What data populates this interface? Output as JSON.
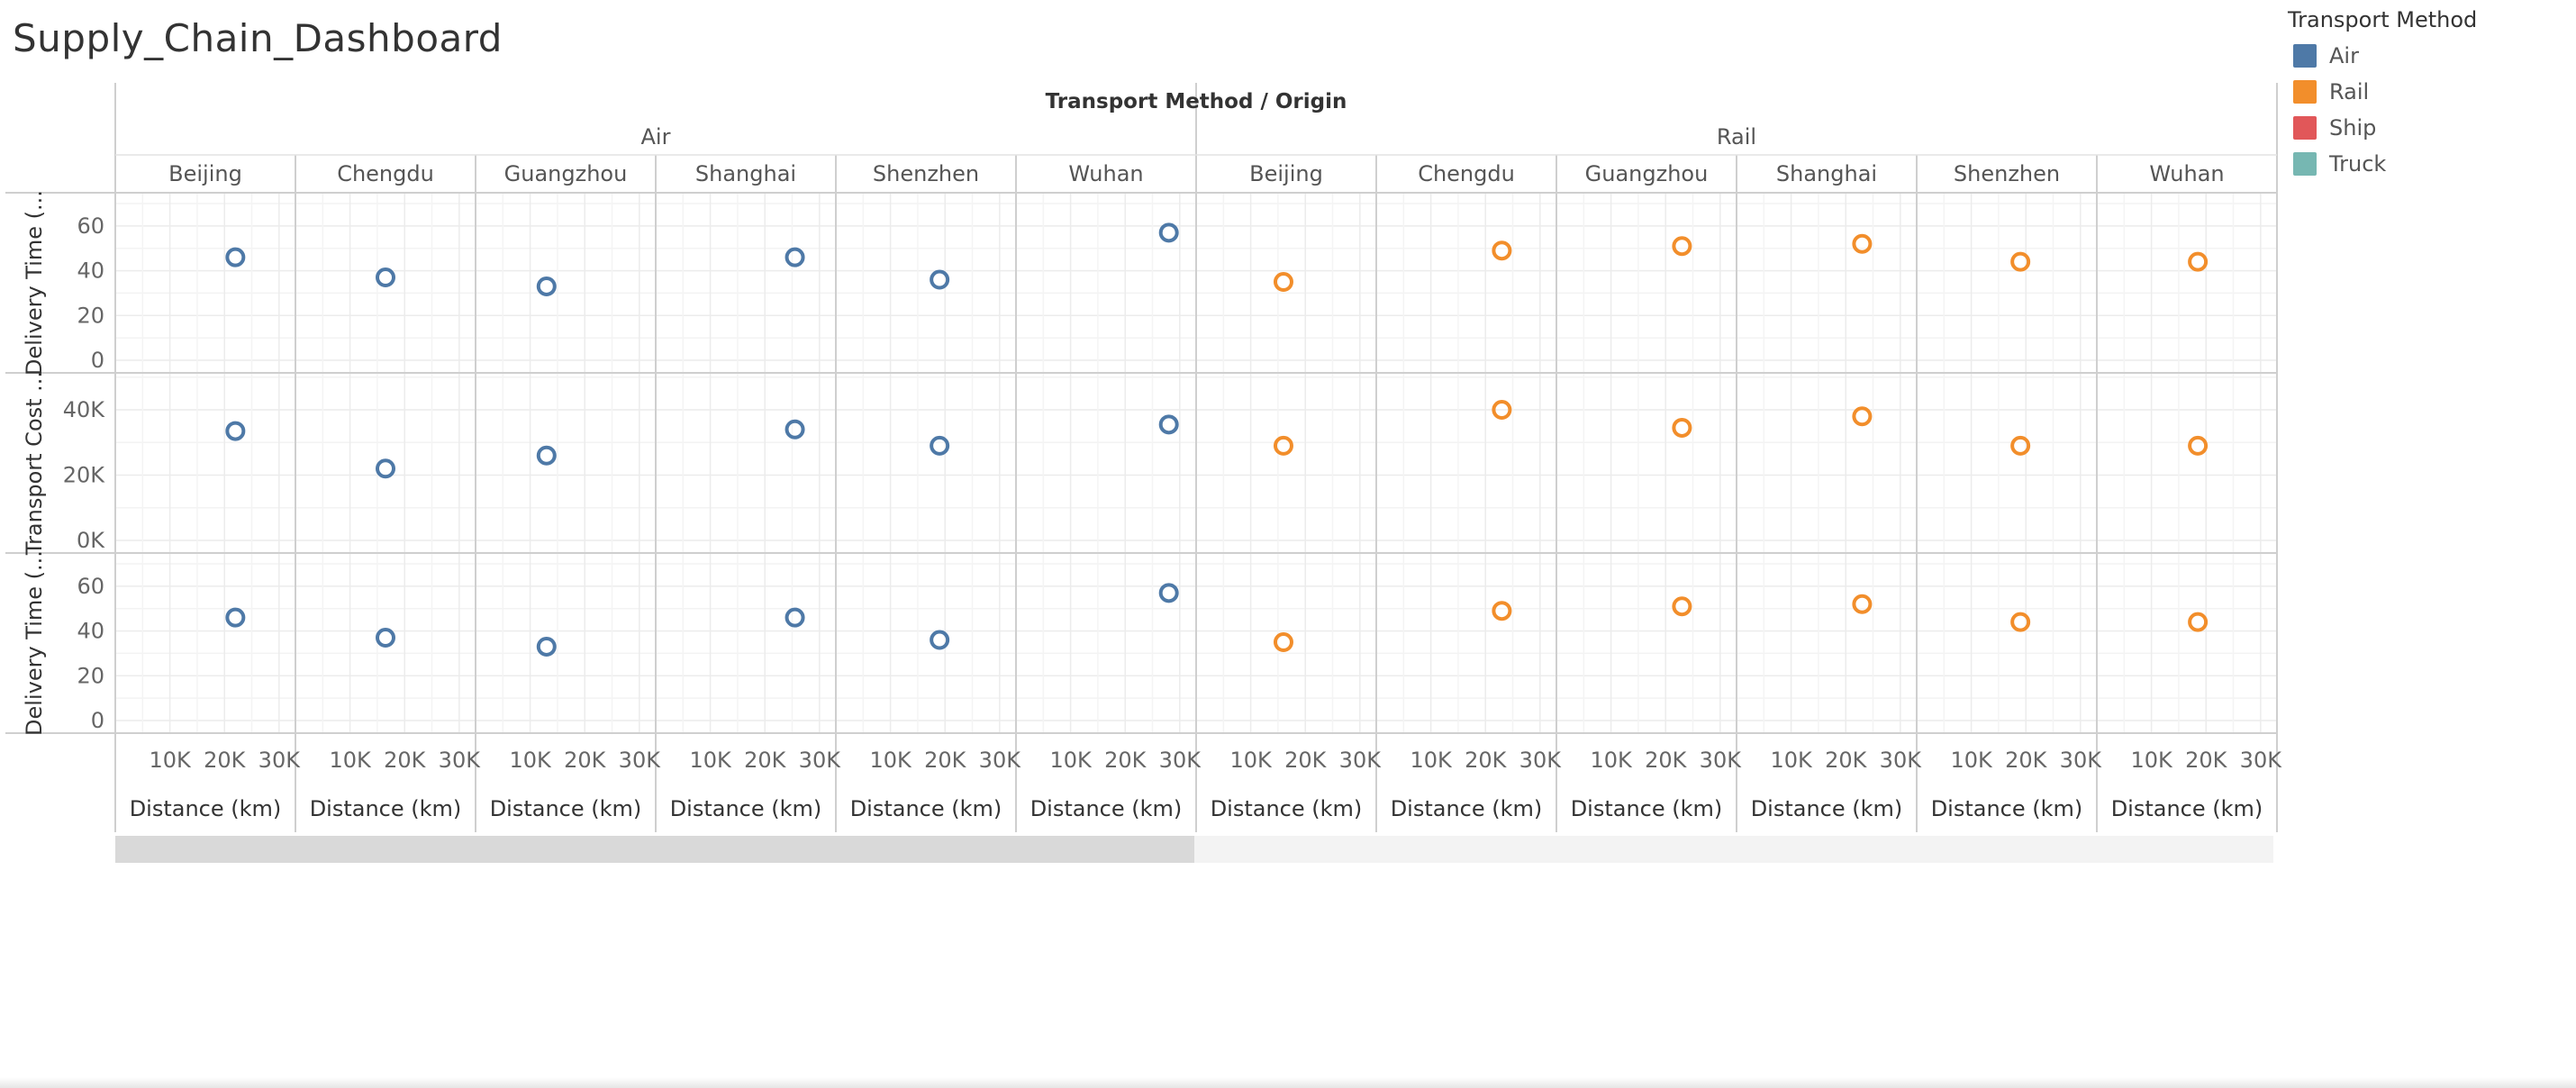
{
  "dashboard": {
    "title": "Supply_Chain_Dashboard"
  },
  "legend": {
    "title": "Transport Method",
    "items": [
      {
        "label": "Air",
        "color": "#4e79a7"
      },
      {
        "label": "Rail",
        "color": "#f28e2b"
      },
      {
        "label": "Ship",
        "color": "#e15759"
      },
      {
        "label": "Truck",
        "color": "#76b7b2"
      }
    ]
  },
  "chart_data": {
    "type": "scatter",
    "column_header": "Transport Method / Origin",
    "groups": [
      {
        "name": "Air",
        "color": "#4e79a7",
        "origins": [
          "Beijing",
          "Chengdu",
          "Guangzhou",
          "Shanghai",
          "Shenzhen",
          "Wuhan"
        ]
      },
      {
        "name": "Rail",
        "color": "#f28e2b",
        "origins": [
          "Beijing",
          "Chengdu",
          "Guangzhou",
          "Shanghai",
          "Shenzhen",
          "Wuhan"
        ]
      }
    ],
    "rows": [
      {
        "label": "Delivery Time (...",
        "ylim": [
          0,
          70
        ],
        "ticks": [
          0,
          20,
          40,
          60
        ],
        "tick_labels": [
          "0",
          "20",
          "40",
          "60"
        ]
      },
      {
        "label": "Transport Cost ...",
        "ylim": [
          0,
          48000
        ],
        "ticks": [
          0,
          20000,
          40000
        ],
        "tick_labels": [
          "0K",
          "20K",
          "40K"
        ]
      },
      {
        "label": "Delivery Time (...",
        "ylim": [
          0,
          70
        ],
        "ticks": [
          0,
          20,
          40,
          60
        ],
        "tick_labels": [
          "0",
          "20",
          "40",
          "60"
        ]
      }
    ],
    "xlabel": "Distance (km)",
    "xlim": [
      0,
      33000
    ],
    "xticks": [
      10000,
      20000,
      30000
    ],
    "xtick_labels": [
      "10K",
      "20K",
      "30K"
    ],
    "points": [
      {
        "group": "Air",
        "origin": "Beijing",
        "distance": 22000,
        "delivery_time": 46,
        "transport_cost": 33500
      },
      {
        "group": "Air",
        "origin": "Chengdu",
        "distance": 16500,
        "delivery_time": 37,
        "transport_cost": 22000
      },
      {
        "group": "Air",
        "origin": "Guangzhou",
        "distance": 13000,
        "delivery_time": 33,
        "transport_cost": 26000
      },
      {
        "group": "Air",
        "origin": "Shanghai",
        "distance": 25500,
        "delivery_time": 46,
        "transport_cost": 34000
      },
      {
        "group": "Air",
        "origin": "Shenzhen",
        "distance": 19000,
        "delivery_time": 36,
        "transport_cost": 29000
      },
      {
        "group": "Air",
        "origin": "Wuhan",
        "distance": 28000,
        "delivery_time": 57,
        "transport_cost": 35500
      },
      {
        "group": "Rail",
        "origin": "Beijing",
        "distance": 16000,
        "delivery_time": 35,
        "transport_cost": 29000
      },
      {
        "group": "Rail",
        "origin": "Chengdu",
        "distance": 23000,
        "delivery_time": 49,
        "transport_cost": 40000
      },
      {
        "group": "Rail",
        "origin": "Guangzhou",
        "distance": 23000,
        "delivery_time": 51,
        "transport_cost": 34500
      },
      {
        "group": "Rail",
        "origin": "Shanghai",
        "distance": 23000,
        "delivery_time": 52,
        "transport_cost": 38000
      },
      {
        "group": "Rail",
        "origin": "Shenzhen",
        "distance": 19000,
        "delivery_time": 44,
        "transport_cost": 29000
      },
      {
        "group": "Rail",
        "origin": "Wuhan",
        "distance": 18500,
        "delivery_time": 44,
        "transport_cost": 29000
      }
    ]
  }
}
